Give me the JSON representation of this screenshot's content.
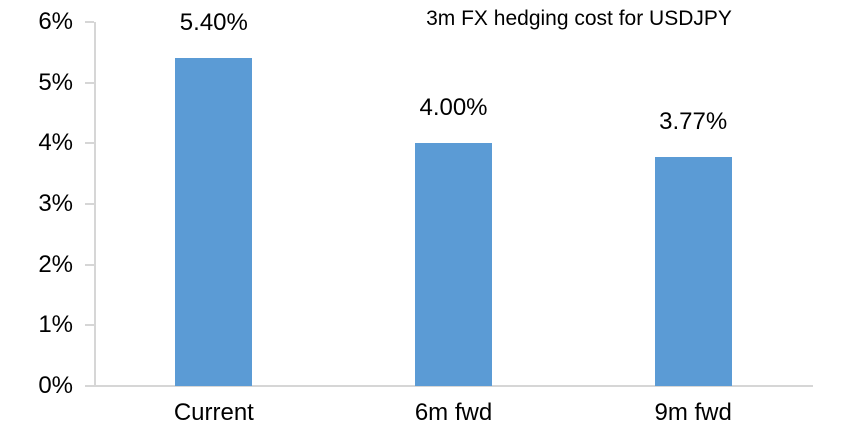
{
  "chart_data": {
    "type": "bar",
    "title": "3m FX hedging cost for USDJPY",
    "categories": [
      "Current",
      "6m fwd",
      "9m fwd"
    ],
    "values": [
      5.4,
      4.0,
      3.77
    ],
    "data_labels": [
      "5.40%",
      "4.00%",
      "3.77%"
    ],
    "xlabel": "",
    "ylabel": "",
    "ylim": [
      0,
      6
    ],
    "yticks": [
      0,
      1,
      2,
      3,
      4,
      5,
      6
    ],
    "ytick_labels": [
      "0%",
      "1%",
      "2%",
      "3%",
      "4%",
      "5%",
      "6%"
    ],
    "grid": false,
    "legend": false,
    "colors": {
      "bar": "#5B9BD5",
      "axis": "#D6D6D6",
      "text": "#000000",
      "background": "#FFFFFF"
    }
  }
}
